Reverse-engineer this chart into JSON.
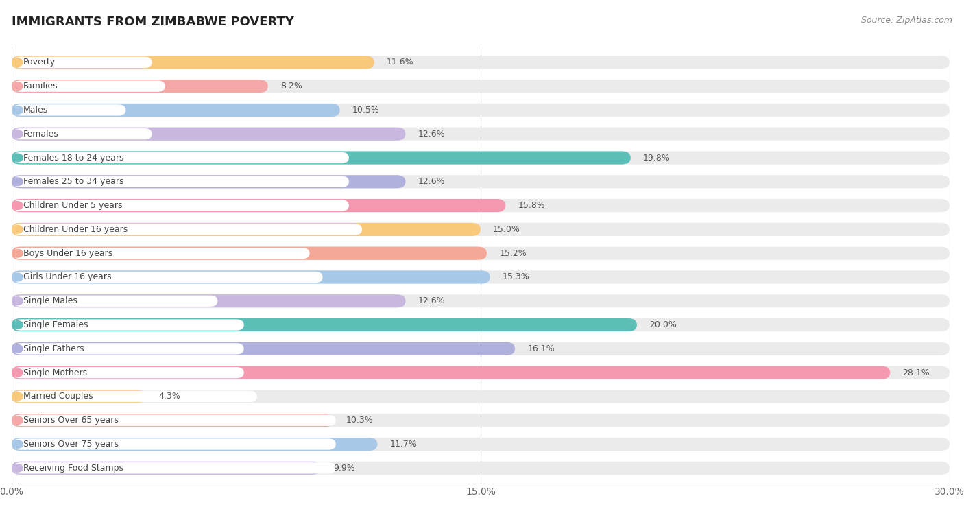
{
  "title": "IMMIGRANTS FROM ZIMBABWE POVERTY",
  "source": "Source: ZipAtlas.com",
  "categories": [
    "Poverty",
    "Families",
    "Males",
    "Females",
    "Females 18 to 24 years",
    "Females 25 to 34 years",
    "Children Under 5 years",
    "Children Under 16 years",
    "Boys Under 16 years",
    "Girls Under 16 years",
    "Single Males",
    "Single Females",
    "Single Fathers",
    "Single Mothers",
    "Married Couples",
    "Seniors Over 65 years",
    "Seniors Over 75 years",
    "Receiving Food Stamps"
  ],
  "values": [
    11.6,
    8.2,
    10.5,
    12.6,
    19.8,
    12.6,
    15.8,
    15.0,
    15.2,
    15.3,
    12.6,
    20.0,
    16.1,
    28.1,
    4.3,
    10.3,
    11.7,
    9.9
  ],
  "bar_colors": [
    "#F9C97C",
    "#F4A8A8",
    "#A8C8E8",
    "#C8B8E0",
    "#5BBFB8",
    "#B0B0DC",
    "#F499B0",
    "#F9C97C",
    "#F4A898",
    "#A8C8E8",
    "#C8B8E0",
    "#5BBFB8",
    "#B0B0DC",
    "#F499B0",
    "#F9C97C",
    "#F4A8A8",
    "#A8C8E8",
    "#C8B8E0"
  ],
  "xlim": [
    0,
    30
  ],
  "xticks": [
    0.0,
    15.0,
    30.0
  ],
  "xticklabels": [
    "0.0%",
    "15.0%",
    "30.0%"
  ],
  "background_color": "#ffffff",
  "bar_bg_color": "#ebebeb"
}
